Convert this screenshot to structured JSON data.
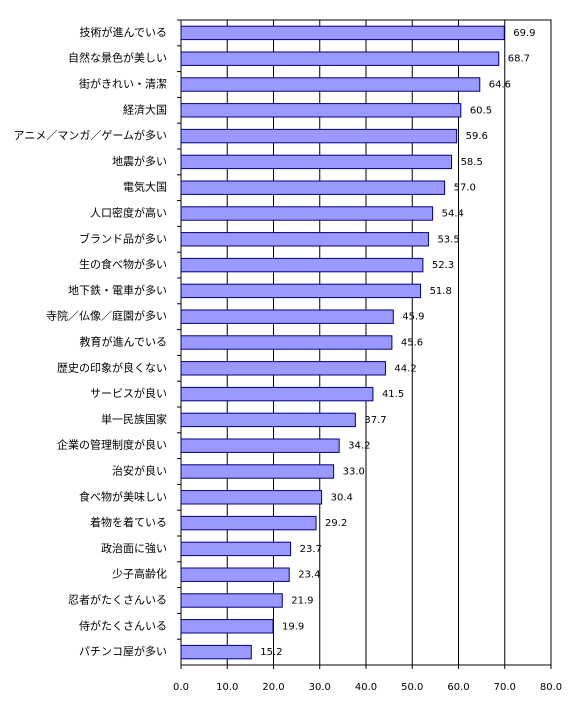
{
  "chart_data": {
    "type": "barh",
    "categories": [
      "技術が進んでいる",
      "自然な景色が美しい",
      "街がきれい・清潔",
      "経済大国",
      "アニメ／マンガ／ゲームが多い",
      "地震が多い",
      "電気大国",
      "人口密度が高い",
      "ブランド品が多い",
      "生の食べ物が多い",
      "地下鉄・電車が多い",
      "寺院／仏像／庭園が多い",
      "教育が進んでいる",
      "歴史の印象が良くない",
      "サービスが良い",
      "単一民族国家",
      "企業の管理制度が良い",
      "治安が良い",
      "食べ物が美味しい",
      "着物を着ている",
      "政治面に強い",
      "少子高齢化",
      "忍者がたくさんいる",
      "侍がたくさんいる",
      "パチンコ屋が多い"
    ],
    "values": [
      69.9,
      68.7,
      64.6,
      60.5,
      59.6,
      58.5,
      57.0,
      54.4,
      53.5,
      52.3,
      51.8,
      45.9,
      45.6,
      44.2,
      41.5,
      37.7,
      34.2,
      33.0,
      30.4,
      29.2,
      23.7,
      23.4,
      21.9,
      19.9,
      15.2
    ],
    "value_labels": [
      "69.9",
      "68.7",
      "64.6",
      "60.5",
      "59.6",
      "58.5",
      "57.0",
      "54.4",
      "53.5",
      "52.3",
      "51.8",
      "45.9",
      "45.6",
      "44.2",
      "41.5",
      "37.7",
      "34.2",
      "33.0",
      "30.4",
      "29.2",
      "23.7",
      "23.4",
      "21.9",
      "19.9",
      "15.2"
    ],
    "color": "#9999ff",
    "xlim": [
      0,
      80
    ],
    "xticks": [
      {
        "value": 0,
        "label": "0.0"
      },
      {
        "value": 10,
        "label": "10.0"
      },
      {
        "value": 20,
        "label": "20.0"
      },
      {
        "value": 30,
        "label": "30.0"
      },
      {
        "value": 40,
        "label": "40.0"
      },
      {
        "value": 50,
        "label": "50.0"
      },
      {
        "value": 60,
        "label": "60.0"
      },
      {
        "value": 70,
        "label": "70.0"
      },
      {
        "value": 80,
        "label": "80.0"
      }
    ],
    "grid": true
  }
}
